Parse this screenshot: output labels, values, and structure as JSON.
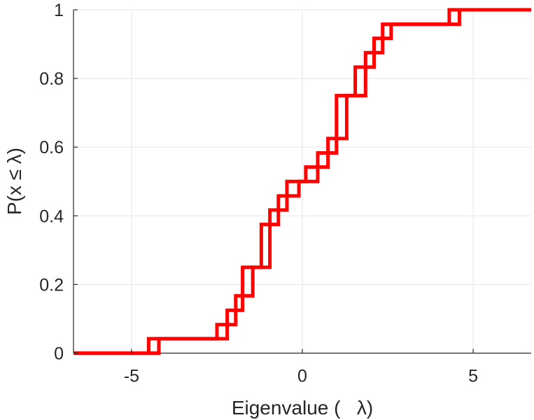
{
  "chart_data": {
    "type": "line",
    "subtype": "empirical-cdf-staircase",
    "title": "",
    "xlabel": "Eigenvalue (   λ)",
    "ylabel": "P(x ≤ λ)",
    "xlim": [
      -6.7,
      6.7
    ],
    "ylim": [
      0,
      1
    ],
    "xticks": [
      -5,
      0,
      5
    ],
    "xtick_labels": [
      "-5",
      "0",
      "5"
    ],
    "yticks": [
      0,
      0.2,
      0.4,
      0.6,
      0.8,
      1
    ],
    "ytick_labels": [
      "0",
      "0.2",
      "0.4",
      "0.6",
      "0.8",
      "1"
    ],
    "grid": true,
    "legend": null,
    "line_color": "#ff0000",
    "series": [
      {
        "values": [
          [
            -6.7,
            0
          ],
          [
            -4.5,
            0
          ],
          [
            -4.5,
            0.042
          ],
          [
            -2.5,
            0.042
          ],
          [
            -2.5,
            0.083
          ],
          [
            -2.2,
            0.083
          ],
          [
            -2.2,
            0.125
          ],
          [
            -1.95,
            0.125
          ],
          [
            -1.95,
            0.167
          ],
          [
            -1.75,
            0.167
          ],
          [
            -1.75,
            0.25
          ],
          [
            -1.2,
            0.25
          ],
          [
            -1.2,
            0.375
          ],
          [
            -0.95,
            0.375
          ],
          [
            -0.95,
            0.417
          ],
          [
            -0.7,
            0.417
          ],
          [
            -0.7,
            0.458
          ],
          [
            -0.45,
            0.458
          ],
          [
            -0.45,
            0.5
          ],
          [
            0.1,
            0.5
          ],
          [
            0.1,
            0.542
          ],
          [
            0.45,
            0.542
          ],
          [
            0.45,
            0.583
          ],
          [
            0.75,
            0.583
          ],
          [
            0.75,
            0.625
          ],
          [
            1.0,
            0.625
          ],
          [
            1.0,
            0.75
          ],
          [
            1.55,
            0.75
          ],
          [
            1.55,
            0.833
          ],
          [
            1.85,
            0.833
          ],
          [
            1.85,
            0.875
          ],
          [
            2.1,
            0.875
          ],
          [
            2.1,
            0.917
          ],
          [
            2.35,
            0.917
          ],
          [
            2.35,
            0.958
          ],
          [
            4.3,
            0.958
          ],
          [
            4.3,
            1
          ],
          [
            6.7,
            1
          ]
        ]
      },
      {
        "values": [
          [
            -6.7,
            0
          ],
          [
            -4.2,
            0
          ],
          [
            -4.2,
            0.042
          ],
          [
            -2.2,
            0.042
          ],
          [
            -2.2,
            0.083
          ],
          [
            -1.95,
            0.083
          ],
          [
            -1.95,
            0.125
          ],
          [
            -1.75,
            0.125
          ],
          [
            -1.75,
            0.167
          ],
          [
            -1.45,
            0.167
          ],
          [
            -1.45,
            0.25
          ],
          [
            -0.95,
            0.25
          ],
          [
            -0.95,
            0.375
          ],
          [
            -0.7,
            0.375
          ],
          [
            -0.7,
            0.417
          ],
          [
            -0.45,
            0.417
          ],
          [
            -0.45,
            0.458
          ],
          [
            -0.1,
            0.458
          ],
          [
            -0.1,
            0.5
          ],
          [
            0.45,
            0.5
          ],
          [
            0.45,
            0.542
          ],
          [
            0.75,
            0.542
          ],
          [
            0.75,
            0.583
          ],
          [
            1.0,
            0.583
          ],
          [
            1.0,
            0.625
          ],
          [
            1.3,
            0.625
          ],
          [
            1.3,
            0.75
          ],
          [
            1.85,
            0.75
          ],
          [
            1.85,
            0.833
          ],
          [
            2.1,
            0.833
          ],
          [
            2.1,
            0.875
          ],
          [
            2.35,
            0.875
          ],
          [
            2.35,
            0.917
          ],
          [
            2.6,
            0.917
          ],
          [
            2.6,
            0.958
          ],
          [
            4.6,
            0.958
          ],
          [
            4.6,
            1
          ],
          [
            6.7,
            1
          ]
        ]
      }
    ]
  }
}
